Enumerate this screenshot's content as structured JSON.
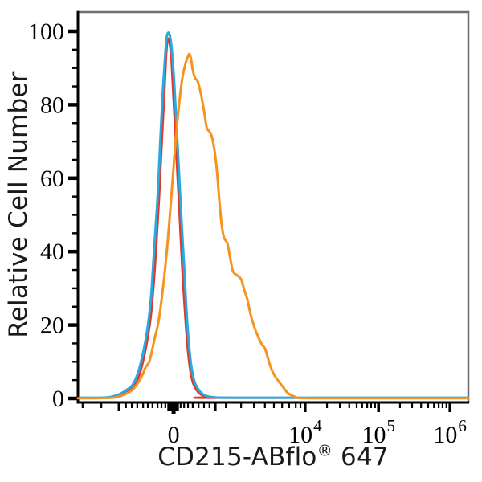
{
  "figure": {
    "y_axis_title": "Relative Cell Number",
    "x_axis_title_prefix": "CD215-ABflo",
    "x_axis_title_registered_mark": "®",
    "x_axis_title_suffix": " 647"
  },
  "chart_data": {
    "type": "line",
    "subtype": "flow-cytometry-histogram-overlay",
    "title": "",
    "xlabel": "CD215-ABflo® 647",
    "ylabel": "Relative Cell Number",
    "x_scale": "biexponential",
    "grid": "off",
    "legend": "none",
    "ylim": [
      0,
      105
    ],
    "y_major_ticks": [
      0,
      20,
      40,
      60,
      80,
      100
    ],
    "y_minor_step": 5,
    "x_labeled_ticks": [
      {
        "text": "0",
        "exp": "",
        "pos": 0.245
      },
      {
        "text": "10",
        "exp": "4",
        "pos": 0.582
      },
      {
        "text": "10",
        "exp": "5",
        "pos": 0.77
      },
      {
        "text": "10",
        "exp": "6",
        "pos": 0.953
      }
    ],
    "x_medium_ticks": [
      0.105,
      0.352
    ],
    "x_cluster_ticks": [
      0.2325,
      0.2387,
      0.249,
      0.2551
    ],
    "x_minor_ticks": [
      0.012,
      0.06,
      0.123,
      0.138,
      0.152,
      0.167,
      0.179,
      0.191,
      0.204,
      0.214,
      0.224,
      0.263,
      0.272,
      0.282,
      0.294,
      0.309,
      0.323,
      0.337,
      0.379,
      0.418,
      0.451,
      0.479,
      0.502,
      0.523,
      0.541,
      0.558,
      0.57,
      0.638,
      0.671,
      0.695,
      0.714,
      0.728,
      0.741,
      0.751,
      0.761,
      0.825,
      0.856,
      0.879,
      0.897,
      0.912,
      0.924,
      0.934,
      0.944
    ],
    "colors": {
      "axis": "#000000",
      "frame": "#6E6F72",
      "background": "#FFFFFF",
      "blue": "#29A9E0",
      "red": "#E0392B",
      "orange": "#F6921E"
    },
    "series": [
      {
        "name": "red-histogram",
        "color": "#E0392B",
        "peak_value": 97.9,
        "stroke_width": 2.6,
        "points": [
          [
            0.01,
            0.1
          ],
          [
            0.06,
            0.1
          ],
          [
            0.093,
            0.35
          ],
          [
            0.113,
            1.1
          ],
          [
            0.13,
            2.2
          ],
          [
            0.144,
            3.4
          ],
          [
            0.158,
            6.5
          ],
          [
            0.171,
            12
          ],
          [
            0.179,
            16.5
          ],
          [
            0.187,
            22.5
          ],
          [
            0.193,
            29.5
          ],
          [
            0.2,
            40
          ],
          [
            0.208,
            54.5
          ],
          [
            0.216,
            72
          ],
          [
            0.222,
            84
          ],
          [
            0.226,
            93
          ],
          [
            0.23,
            97.9
          ],
          [
            0.235,
            96.5
          ],
          [
            0.239,
            92.5
          ],
          [
            0.243,
            85
          ],
          [
            0.249,
            73
          ],
          [
            0.255,
            60.5
          ],
          [
            0.261,
            48.5
          ],
          [
            0.267,
            35.5
          ],
          [
            0.274,
            23.5
          ],
          [
            0.28,
            14.8
          ],
          [
            0.286,
            8.8
          ],
          [
            0.294,
            4.4
          ],
          [
            0.305,
            2.1
          ],
          [
            0.317,
            0.9
          ],
          [
            0.331,
            0.35
          ],
          [
            0.352,
            0.15
          ],
          [
            1,
            0.15
          ]
        ]
      },
      {
        "name": "blue-histogram",
        "color": "#29A9E0",
        "peak_value": 99.6,
        "stroke_width": 3,
        "points": [
          [
            0.006,
            0.2
          ],
          [
            0.058,
            0.2
          ],
          [
            0.088,
            0.5
          ],
          [
            0.109,
            1.3
          ],
          [
            0.126,
            2.4
          ],
          [
            0.14,
            3.7
          ],
          [
            0.154,
            7
          ],
          [
            0.167,
            12.5
          ],
          [
            0.175,
            17
          ],
          [
            0.183,
            23
          ],
          [
            0.189,
            30
          ],
          [
            0.195,
            40.4
          ],
          [
            0.204,
            54.7
          ],
          [
            0.212,
            72.3
          ],
          [
            0.218,
            84.4
          ],
          [
            0.224,
            94.3
          ],
          [
            0.228,
            98.7
          ],
          [
            0.233,
            99.6
          ],
          [
            0.237,
            98
          ],
          [
            0.241,
            94.3
          ],
          [
            0.247,
            85.5
          ],
          [
            0.253,
            73.4
          ],
          [
            0.259,
            61.3
          ],
          [
            0.265,
            49.2
          ],
          [
            0.272,
            36
          ],
          [
            0.278,
            24
          ],
          [
            0.284,
            15.2
          ],
          [
            0.29,
            9.2
          ],
          [
            0.298,
            4.8
          ],
          [
            0.309,
            2.4
          ],
          [
            0.321,
            1.1
          ],
          [
            0.335,
            0.5
          ],
          [
            0.356,
            0.25
          ],
          [
            0.387,
            0.2
          ],
          [
            0.623,
            0.2
          ],
          [
            1,
            0.2
          ]
        ]
      },
      {
        "name": "orange-histogram",
        "color": "#F6921E",
        "peak_value": 93.8,
        "stroke_width": 3,
        "points": [
          [
            0,
            0.05
          ],
          [
            0.088,
            0.2
          ],
          [
            0.115,
            0.9
          ],
          [
            0.14,
            2.4
          ],
          [
            0.16,
            5.3
          ],
          [
            0.173,
            8.4
          ],
          [
            0.179,
            9.3
          ],
          [
            0.185,
            10.8
          ],
          [
            0.198,
            17
          ],
          [
            0.206,
            20.7
          ],
          [
            0.216,
            28.4
          ],
          [
            0.226,
            38.2
          ],
          [
            0.235,
            49.2
          ],
          [
            0.243,
            60.2
          ],
          [
            0.251,
            71.2
          ],
          [
            0.259,
            80
          ],
          [
            0.267,
            87
          ],
          [
            0.276,
            91.4
          ],
          [
            0.282,
            93.2
          ],
          [
            0.286,
            93.8
          ],
          [
            0.29,
            92.3
          ],
          [
            0.294,
            89.5
          ],
          [
            0.3,
            87.3
          ],
          [
            0.307,
            86.3
          ],
          [
            0.315,
            83
          ],
          [
            0.323,
            78.3
          ],
          [
            0.329,
            74.2
          ],
          [
            0.333,
            73.2
          ],
          [
            0.342,
            71.7
          ],
          [
            0.35,
            67.4
          ],
          [
            0.356,
            62.1
          ],
          [
            0.362,
            54.2
          ],
          [
            0.368,
            47.6
          ],
          [
            0.374,
            43.9
          ],
          [
            0.383,
            42.2
          ],
          [
            0.389,
            38.8
          ],
          [
            0.397,
            34.7
          ],
          [
            0.407,
            33.6
          ],
          [
            0.418,
            32.5
          ],
          [
            0.426,
            29.6
          ],
          [
            0.434,
            27
          ],
          [
            0.442,
            23
          ],
          [
            0.453,
            19.1
          ],
          [
            0.463,
            16.5
          ],
          [
            0.471,
            14.7
          ],
          [
            0.479,
            13.6
          ],
          [
            0.488,
            10.5
          ],
          [
            0.496,
            7.9
          ],
          [
            0.506,
            5.9
          ],
          [
            0.516,
            4.4
          ],
          [
            0.527,
            2.9
          ],
          [
            0.537,
            1.5
          ],
          [
            0.547,
            0.9
          ],
          [
            0.558,
            0.35
          ],
          [
            0.572,
            0.1
          ],
          [
            0.665,
            0.05
          ],
          [
            1,
            0.05
          ]
        ]
      }
    ]
  }
}
